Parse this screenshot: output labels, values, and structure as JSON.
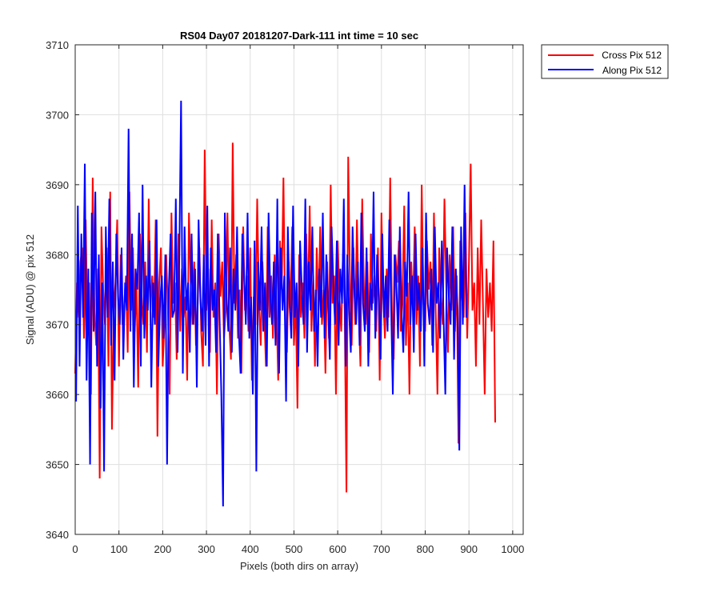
{
  "chart_data": {
    "type": "line",
    "title": "RS04 Day07 20181207-Dark-111 int time = 10 sec",
    "xlabel": "Pixels (both dirs on array)",
    "ylabel": "Signal (ADU) @ pix 512",
    "xlim": [
      0,
      1024
    ],
    "ylim": [
      3640,
      3710
    ],
    "xticks": [
      0,
      100,
      200,
      300,
      400,
      500,
      600,
      700,
      800,
      900,
      1000
    ],
    "yticks": [
      3640,
      3650,
      3660,
      3670,
      3680,
      3690,
      3700,
      3710
    ],
    "grid": true,
    "legend_position": "outside-top-right",
    "series": [
      {
        "name": "Cross Pix 512",
        "color": "#ff0000",
        "x_start": 0,
        "x_step": 4,
        "values": [
          3663,
          3676,
          3671,
          3679,
          3681,
          3668,
          3685,
          3669,
          3676,
          3660,
          3691,
          3672,
          3667,
          3678,
          3648,
          3684,
          3675,
          3670,
          3681,
          3664,
          3689,
          3655,
          3672,
          3676,
          3685,
          3664,
          3680,
          3670,
          3673,
          3677,
          3666,
          3689,
          3672,
          3681,
          3669,
          3676,
          3661,
          3683,
          3674,
          3670,
          3679,
          3666,
          3688,
          3672,
          3677,
          3671,
          3685,
          3654,
          3676,
          3681,
          3664,
          3670,
          3680,
          3672,
          3660,
          3686,
          3673,
          3676,
          3665,
          3683,
          3669,
          3678,
          3671,
          3674,
          3662,
          3686,
          3676,
          3670,
          3679,
          3667,
          3673,
          3681,
          3669,
          3664,
          3695,
          3672,
          3678,
          3666,
          3685,
          3671,
          3676,
          3660,
          3683,
          3674,
          3679,
          3668,
          3672,
          3686,
          3670,
          3665,
          3696,
          3673,
          3680,
          3668,
          3675,
          3663,
          3684,
          3672,
          3677,
          3669,
          3681,
          3662,
          3674,
          3670,
          3688,
          3673,
          3667,
          3679,
          3672,
          3664,
          3684,
          3671,
          3677,
          3668,
          3680,
          3673,
          3662,
          3682,
          3675,
          3691,
          3670,
          3666,
          3679,
          3672,
          3684,
          3667,
          3674,
          3658,
          3680,
          3671,
          3676,
          3668,
          3683,
          3673,
          3687,
          3669,
          3677,
          3664,
          3681,
          3672,
          3684,
          3670,
          3675,
          3663,
          3679,
          3668,
          3690,
          3673,
          3677,
          3660,
          3682,
          3674,
          3669,
          3680,
          3672,
          3646,
          3694,
          3676,
          3667,
          3681,
          3670,
          3685,
          3672,
          3664,
          3688,
          3675,
          3670,
          3679,
          3666,
          3683,
          3673,
          3677,
          3669,
          3681,
          3662,
          3686,
          3674,
          3668,
          3678,
          3671,
          3691,
          3672,
          3665,
          3680,
          3676,
          3682,
          3669,
          3673,
          3687,
          3667,
          3676,
          3660,
          3679,
          3672,
          3684,
          3670,
          3677,
          3664,
          3690,
          3673,
          3669,
          3682,
          3675,
          3679,
          3667,
          3686,
          3672,
          3660,
          3681,
          3674,
          3670,
          3688,
          3676,
          3666,
          3680,
          3672,
          3684,
          3669,
          3677,
          3653,
          3682,
          3674,
          3671,
          3686,
          3668,
          3679,
          3693,
          3672,
          3676,
          3664,
          3681,
          3670,
          3685,
          3673,
          3660,
          3678,
          3671,
          3676,
          3669,
          3682,
          3656
        ]
      },
      {
        "name": "Along Pix 512",
        "color": "#0000ff",
        "x_start": 2,
        "x_step": 4,
        "values": [
          3659,
          3687,
          3664,
          3683,
          3671,
          3693,
          3662,
          3678,
          3650,
          3686,
          3669,
          3689,
          3664,
          3680,
          3658,
          3676,
          3649,
          3684,
          3671,
          3688,
          3667,
          3679,
          3662,
          3683,
          3674,
          3670,
          3681,
          3665,
          3676,
          3672,
          3698,
          3669,
          3683,
          3661,
          3678,
          3675,
          3686,
          3664,
          3690,
          3668,
          3677,
          3672,
          3682,
          3661,
          3676,
          3670,
          3685,
          3664,
          3673,
          3677,
          3668,
          3680,
          3650,
          3675,
          3683,
          3671,
          3672,
          3688,
          3666,
          3680,
          3702,
          3663,
          3684,
          3672,
          3676,
          3666,
          3683,
          3670,
          3678,
          3661,
          3685,
          3674,
          3669,
          3680,
          3667,
          3687,
          3664,
          3681,
          3672,
          3675,
          3666,
          3683,
          3671,
          3660,
          3644,
          3686,
          3674,
          3669,
          3681,
          3666,
          3678,
          3672,
          3684,
          3669,
          3663,
          3683,
          3677,
          3670,
          3686,
          3668,
          3674,
          3660,
          3682,
          3649,
          3679,
          3672,
          3684,
          3669,
          3676,
          3664,
          3686,
          3674,
          3670,
          3679,
          3667,
          3688,
          3663,
          3681,
          3672,
          3677,
          3659,
          3684,
          3673,
          3668,
          3687,
          3671,
          3676,
          3664,
          3682,
          3675,
          3670,
          3688,
          3666,
          3679,
          3672,
          3684,
          3669,
          3675,
          3664,
          3678,
          3671,
          3686,
          3668,
          3680,
          3673,
          3665,
          3684,
          3676,
          3670,
          3682,
          3667,
          3678,
          3673,
          3688,
          3664,
          3680,
          3672,
          3666,
          3684,
          3675,
          3670,
          3679,
          3667,
          3686,
          3673,
          3669,
          3681,
          3664,
          3676,
          3672,
          3689,
          3668,
          3680,
          3674,
          3665,
          3683,
          3671,
          3677,
          3669,
          3685,
          3673,
          3660,
          3680,
          3676,
          3668,
          3684,
          3672,
          3666,
          3679,
          3674,
          3689,
          3670,
          3677,
          3666,
          3683,
          3672,
          3676,
          3669,
          3681,
          3664,
          3686,
          3673,
          3670,
          3678,
          3666,
          3684,
          3673,
          3676,
          3668,
          3682,
          3671,
          3660,
          3681,
          3674,
          3670,
          3684,
          3665,
          3678,
          3672,
          3652,
          3684,
          3670,
          3690,
          3671
        ]
      }
    ]
  }
}
